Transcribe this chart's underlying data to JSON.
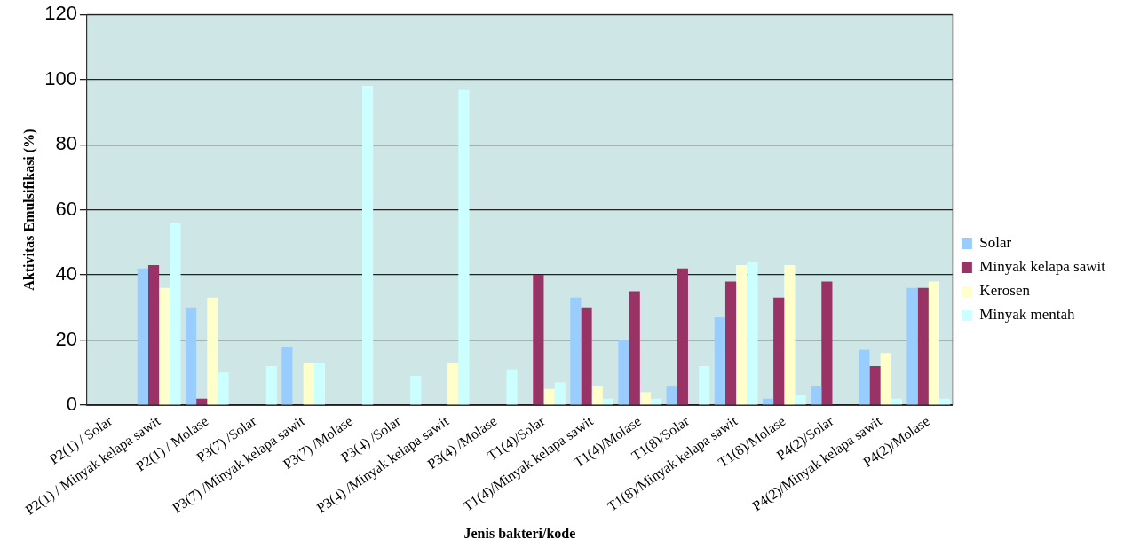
{
  "chart_data": {
    "type": "bar",
    "xlabel": "Jenis bakteri/kode",
    "ylabel": "Aktivitas Emulsifikasi (%)",
    "categories": [
      "P2(1) / Solar",
      "P2(1) / Minyak kelapa sawit",
      "P2(1) / Molase",
      "P3(7) /Solar",
      "P3(7) /Minyak kelapa sawit",
      "P3(7) /Molase",
      "P3(4) /Solar",
      "P3(4) /Minyak kelapa sawit",
      "P3(4) /Molase",
      "T1(4)/Solar",
      "T1(4)/Minyak kelapa sawit",
      "T1(4)/Molase",
      "T1(8)/Solar",
      "T1(8)/Minyak kelapa sawit",
      "T1(8)/Molase",
      "P4(2)/Solar",
      "P4(2)/Minyak kelapa sawit",
      "P4(2)/Molase"
    ],
    "series": [
      {
        "name": "Solar",
        "color": "#99ccff",
        "values": [
          null,
          42,
          30,
          null,
          18,
          null,
          null,
          null,
          null,
          null,
          33,
          20,
          6,
          27,
          2,
          6,
          17,
          36
        ]
      },
      {
        "name": "Minyak kelapa sawit",
        "color": "#993366",
        "values": [
          null,
          43,
          2,
          null,
          null,
          null,
          null,
          null,
          null,
          40,
          30,
          35,
          42,
          38,
          33,
          38,
          12,
          36
        ]
      },
      {
        "name": "Kerosen",
        "color": "#ffffcc",
        "values": [
          null,
          36,
          33,
          null,
          13,
          null,
          null,
          13,
          null,
          5,
          6,
          4,
          null,
          43,
          43,
          null,
          16,
          38
        ]
      },
      {
        "name": "Minyak mentah",
        "color": "#ccffff",
        "values": [
          null,
          56,
          10,
          12,
          13,
          98,
          9,
          97,
          11,
          7,
          2,
          2,
          12,
          44,
          3,
          null,
          2,
          2
        ]
      }
    ],
    "ylim": [
      0,
      120
    ],
    "yticks": [
      0,
      20,
      40,
      60,
      80,
      100,
      120
    ],
    "grid": "y",
    "legend": "right"
  }
}
